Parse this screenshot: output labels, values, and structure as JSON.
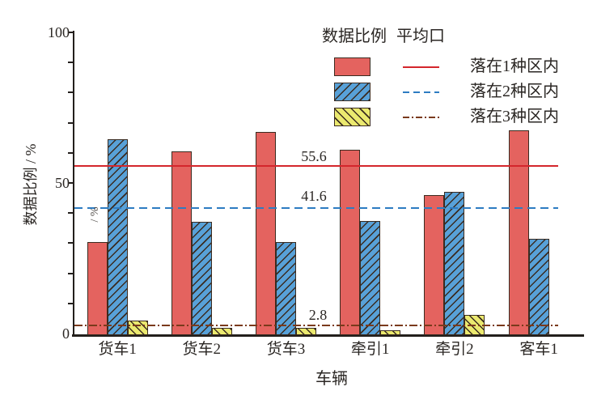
{
  "figure": {
    "background": "#ffffff",
    "text_color": "#2b2724",
    "axis_color": "#231f1c"
  },
  "chart_data": {
    "type": "bar",
    "title": "",
    "xlabel": "车辆",
    "ylabel": "数据比例 / %",
    "ylabel_fragment": "/ %",
    "ylim": [
      0,
      100
    ],
    "yticks": [
      0,
      50,
      100
    ],
    "minor_tick_step": 10,
    "grid": "off",
    "categories": [
      "货车1",
      "货车2",
      "货车3",
      "牵引1",
      "牵引2",
      "客车1"
    ],
    "series": [
      {
        "name": "落在1种区内",
        "color": "#e4635f",
        "hatch": "none",
        "values": [
          30.5,
          60.5,
          67,
          61,
          46,
          67.5
        ]
      },
      {
        "name": "落在2种区内",
        "color": "#58a1d8",
        "hatch": "/",
        "values": [
          64.5,
          37,
          30.5,
          37.5,
          47,
          31.5
        ]
      },
      {
        "name": "落在3种区内",
        "color": "#ebe96f",
        "hatch": "\\",
        "values": [
          4.3,
          2,
          2,
          1.2,
          6.2,
          0
        ]
      }
    ],
    "reference_lines": [
      {
        "label": "55.6",
        "value": 55.6,
        "style": "solid",
        "color": "#d4262c"
      },
      {
        "label": "41.6",
        "value": 41.6,
        "style": "dashed",
        "color": "#2d7cc2"
      },
      {
        "label": "2.8",
        "value": 2.8,
        "style": "dashdot",
        "color": "#7a3a1c"
      }
    ],
    "legend": {
      "position": "top-right",
      "col1_header": "数据比例",
      "col2_header": "平均口"
    }
  }
}
